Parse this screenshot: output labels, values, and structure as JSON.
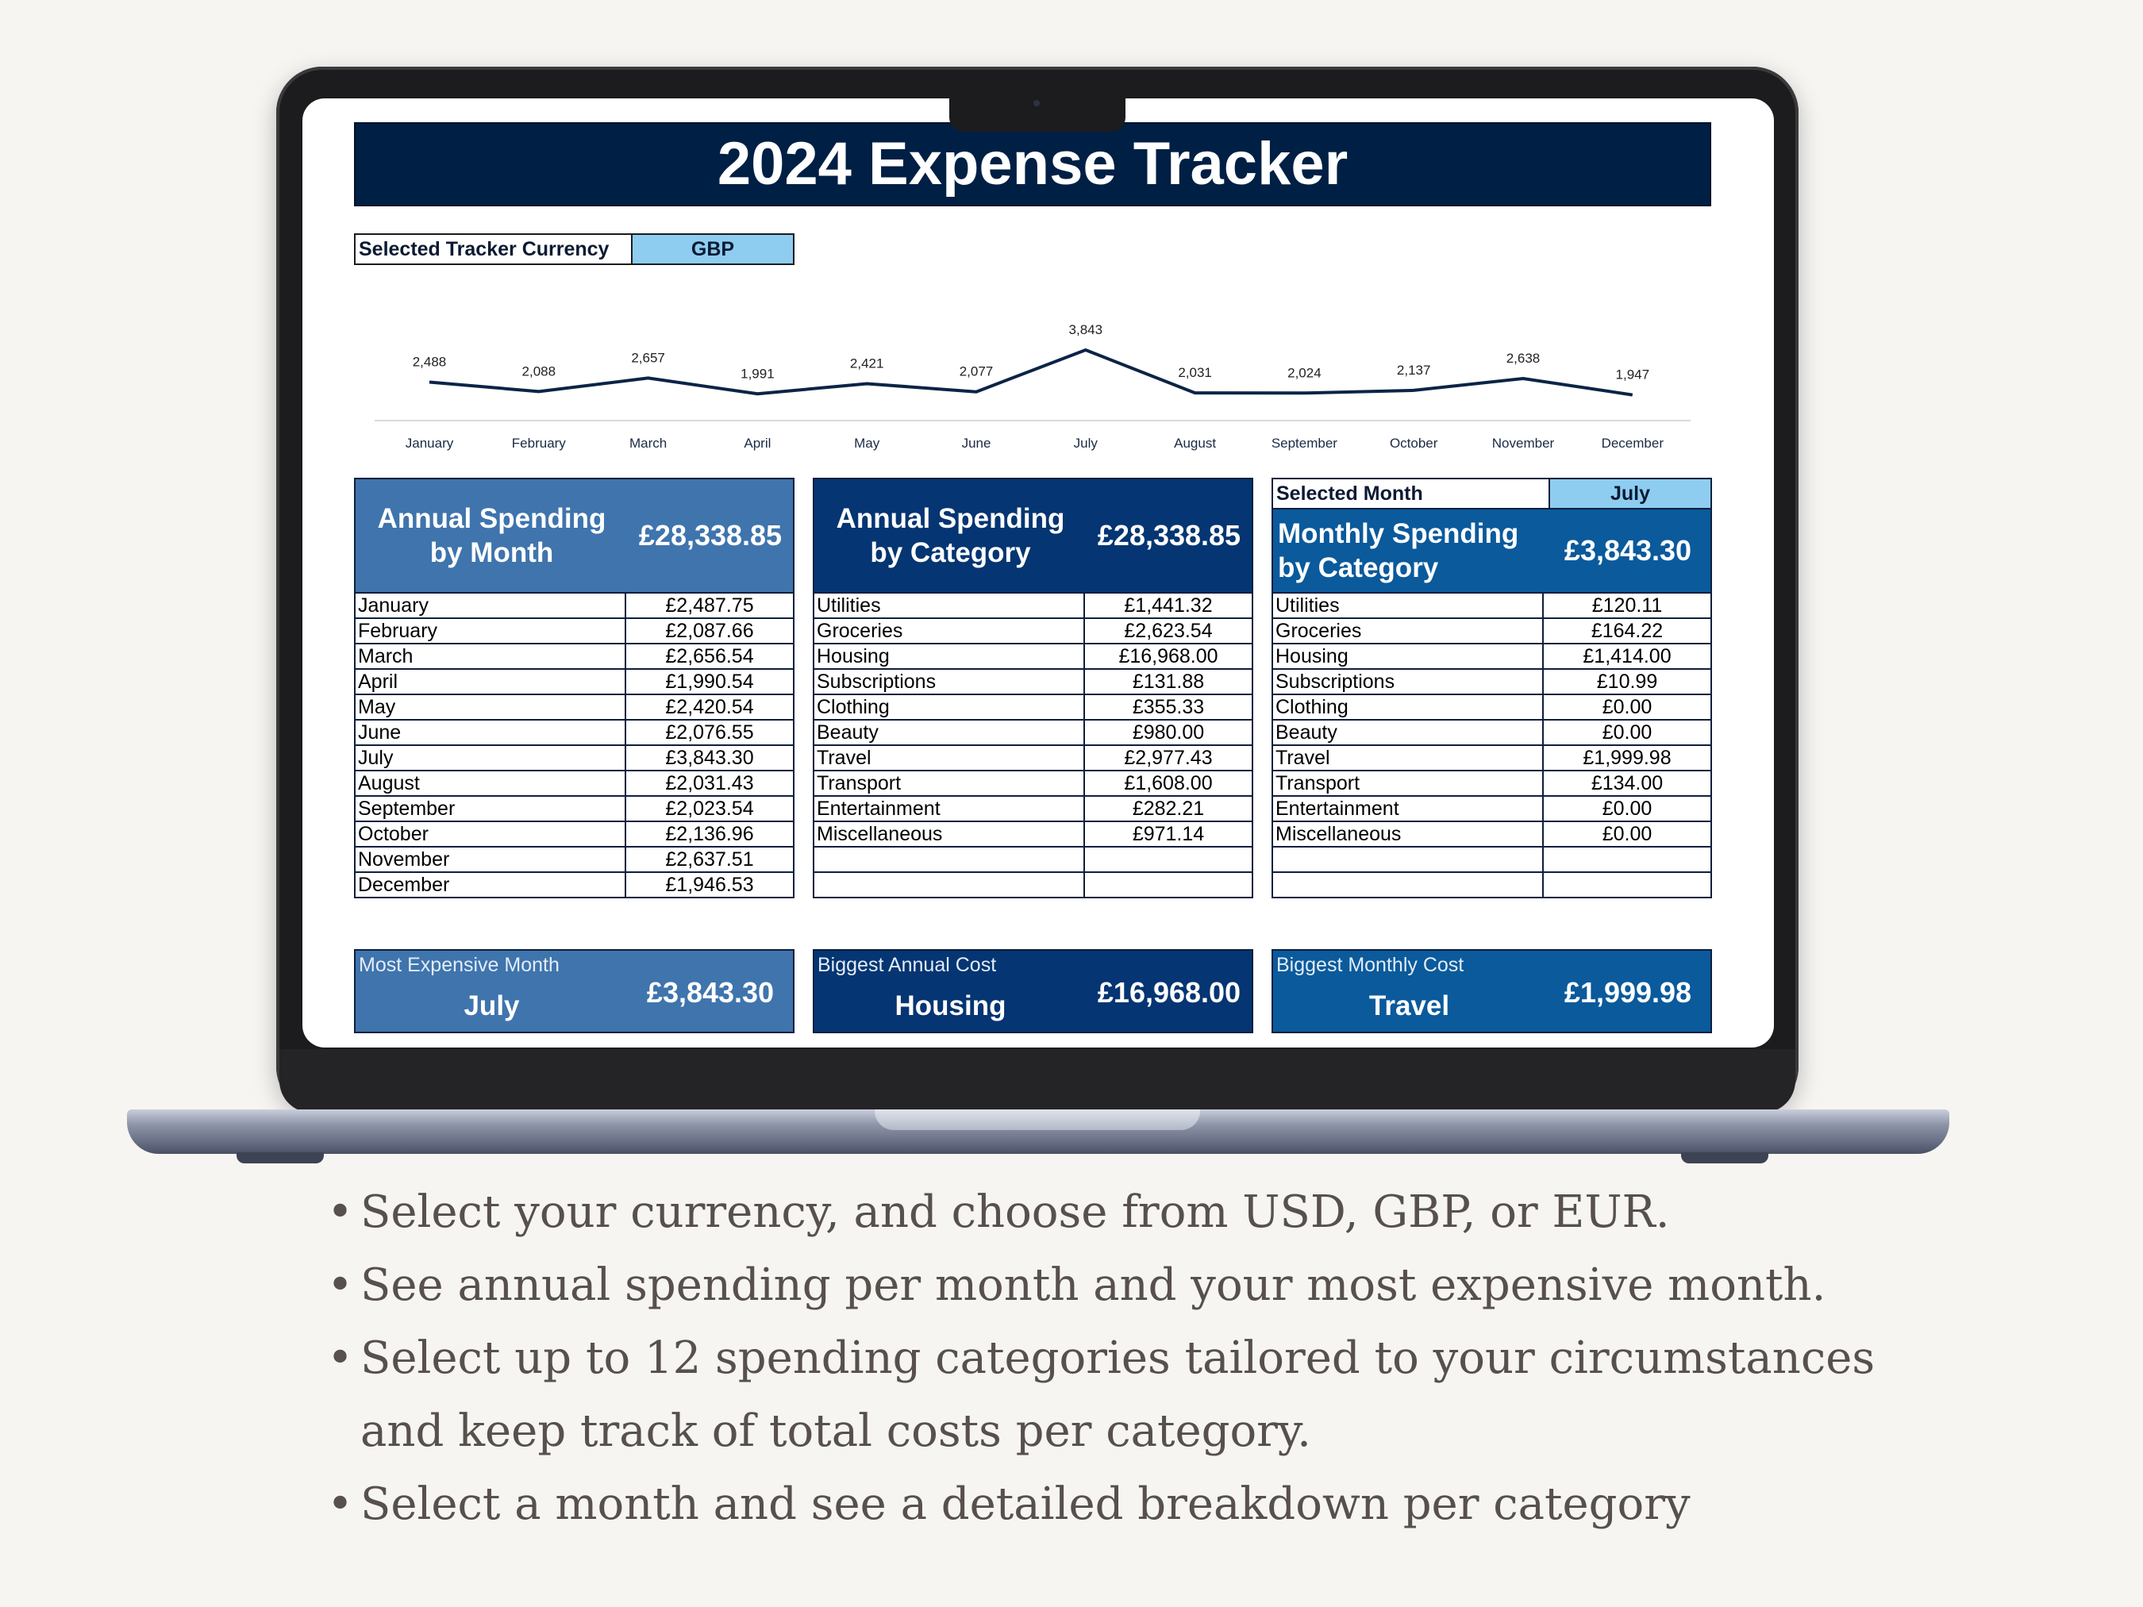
{
  "sheet": {
    "title": "2024 Expense Tracker",
    "currency_label": "Selected Tracker Currency",
    "currency_value": "GBP"
  },
  "chart_data": {
    "type": "line",
    "categories": [
      "January",
      "February",
      "March",
      "April",
      "May",
      "June",
      "July",
      "August",
      "September",
      "October",
      "November",
      "December"
    ],
    "values": [
      2488,
      2088,
      2657,
      1991,
      2421,
      2077,
      3843,
      2031,
      2024,
      2137,
      2638,
      1947
    ],
    "value_labels": [
      "2,488",
      "2,088",
      "2,657",
      "1,991",
      "2,421",
      "2,077",
      "3,843",
      "2,031",
      "2,024",
      "2,137",
      "2,638",
      "1,947"
    ],
    "title": "",
    "xlabel": "",
    "ylabel": "",
    "line_color": "#0b2447"
  },
  "annual_month": {
    "title_line1": "Annual Spending",
    "title_line2": "by Month",
    "total": "£28,338.85",
    "color": "#3f74ad",
    "rows": [
      {
        "label": "January",
        "value": "£2,487.75"
      },
      {
        "label": "February",
        "value": "£2,087.66"
      },
      {
        "label": "March",
        "value": "£2,656.54"
      },
      {
        "label": "April",
        "value": "£1,990.54"
      },
      {
        "label": "May",
        "value": "£2,420.54"
      },
      {
        "label": "June",
        "value": "£2,076.55"
      },
      {
        "label": "July",
        "value": "£3,843.30"
      },
      {
        "label": "August",
        "value": "£2,031.43"
      },
      {
        "label": "September",
        "value": "£2,023.54"
      },
      {
        "label": "October",
        "value": "£2,136.96"
      },
      {
        "label": "November",
        "value": "£2,637.51"
      },
      {
        "label": "December",
        "value": "£1,946.53"
      }
    ]
  },
  "annual_category": {
    "title_line1": "Annual Spending",
    "title_line2": "by Category",
    "total": "£28,338.85",
    "color": "#053572",
    "rows": [
      {
        "label": "Utilities",
        "value": "£1,441.32"
      },
      {
        "label": "Groceries",
        "value": "£2,623.54"
      },
      {
        "label": "Housing",
        "value": "£16,968.00"
      },
      {
        "label": "Subscriptions",
        "value": "£131.88"
      },
      {
        "label": "Clothing",
        "value": "£355.33"
      },
      {
        "label": "Beauty",
        "value": "£980.00"
      },
      {
        "label": "Travel",
        "value": "£2,977.43"
      },
      {
        "label": "Transport",
        "value": "£1,608.00"
      },
      {
        "label": "Entertainment",
        "value": "£282.21"
      },
      {
        "label": "Miscellaneous",
        "value": "£971.14"
      },
      {
        "label": "",
        "value": ""
      },
      {
        "label": "",
        "value": ""
      }
    ]
  },
  "monthly_category": {
    "selected_label": "Selected Month",
    "selected_value": "July",
    "title_line1": "Monthly Spending",
    "title_line2": "by Category",
    "total": "£3,843.30",
    "color": "#0a5a9c",
    "rows": [
      {
        "label": "Utilities",
        "value": "£120.11"
      },
      {
        "label": "Groceries",
        "value": "£164.22"
      },
      {
        "label": "Housing",
        "value": "£1,414.00"
      },
      {
        "label": "Subscriptions",
        "value": "£10.99"
      },
      {
        "label": "Clothing",
        "value": "£0.00"
      },
      {
        "label": "Beauty",
        "value": "£0.00"
      },
      {
        "label": "Travel",
        "value": "£1,999.98"
      },
      {
        "label": "Transport",
        "value": "£134.00"
      },
      {
        "label": "Entertainment",
        "value": "£0.00"
      },
      {
        "label": "Miscellaneous",
        "value": "£0.00"
      },
      {
        "label": "",
        "value": ""
      },
      {
        "label": "",
        "value": ""
      }
    ]
  },
  "cards": [
    {
      "label": "Most Expensive Month",
      "name": "July",
      "value": "£3,843.30",
      "color": "#3f74ad"
    },
    {
      "label": "Biggest Annual Cost",
      "name": "Housing",
      "value": "£16,968.00",
      "color": "#053572"
    },
    {
      "label": "Biggest Monthly Cost",
      "name": "Travel",
      "value": "£1,999.98",
      "color": "#0a5a9c"
    }
  ],
  "bullets": [
    "Select your currency, and choose from USD, GBP, or EUR.",
    "See annual spending per month and your most expensive month.",
    "Select up to 12 spending categories tailored to your circumstances",
    "and keep track of total costs per category.",
    "Select a month and see a detailed breakdown per category"
  ],
  "bullet_symbol": "•"
}
